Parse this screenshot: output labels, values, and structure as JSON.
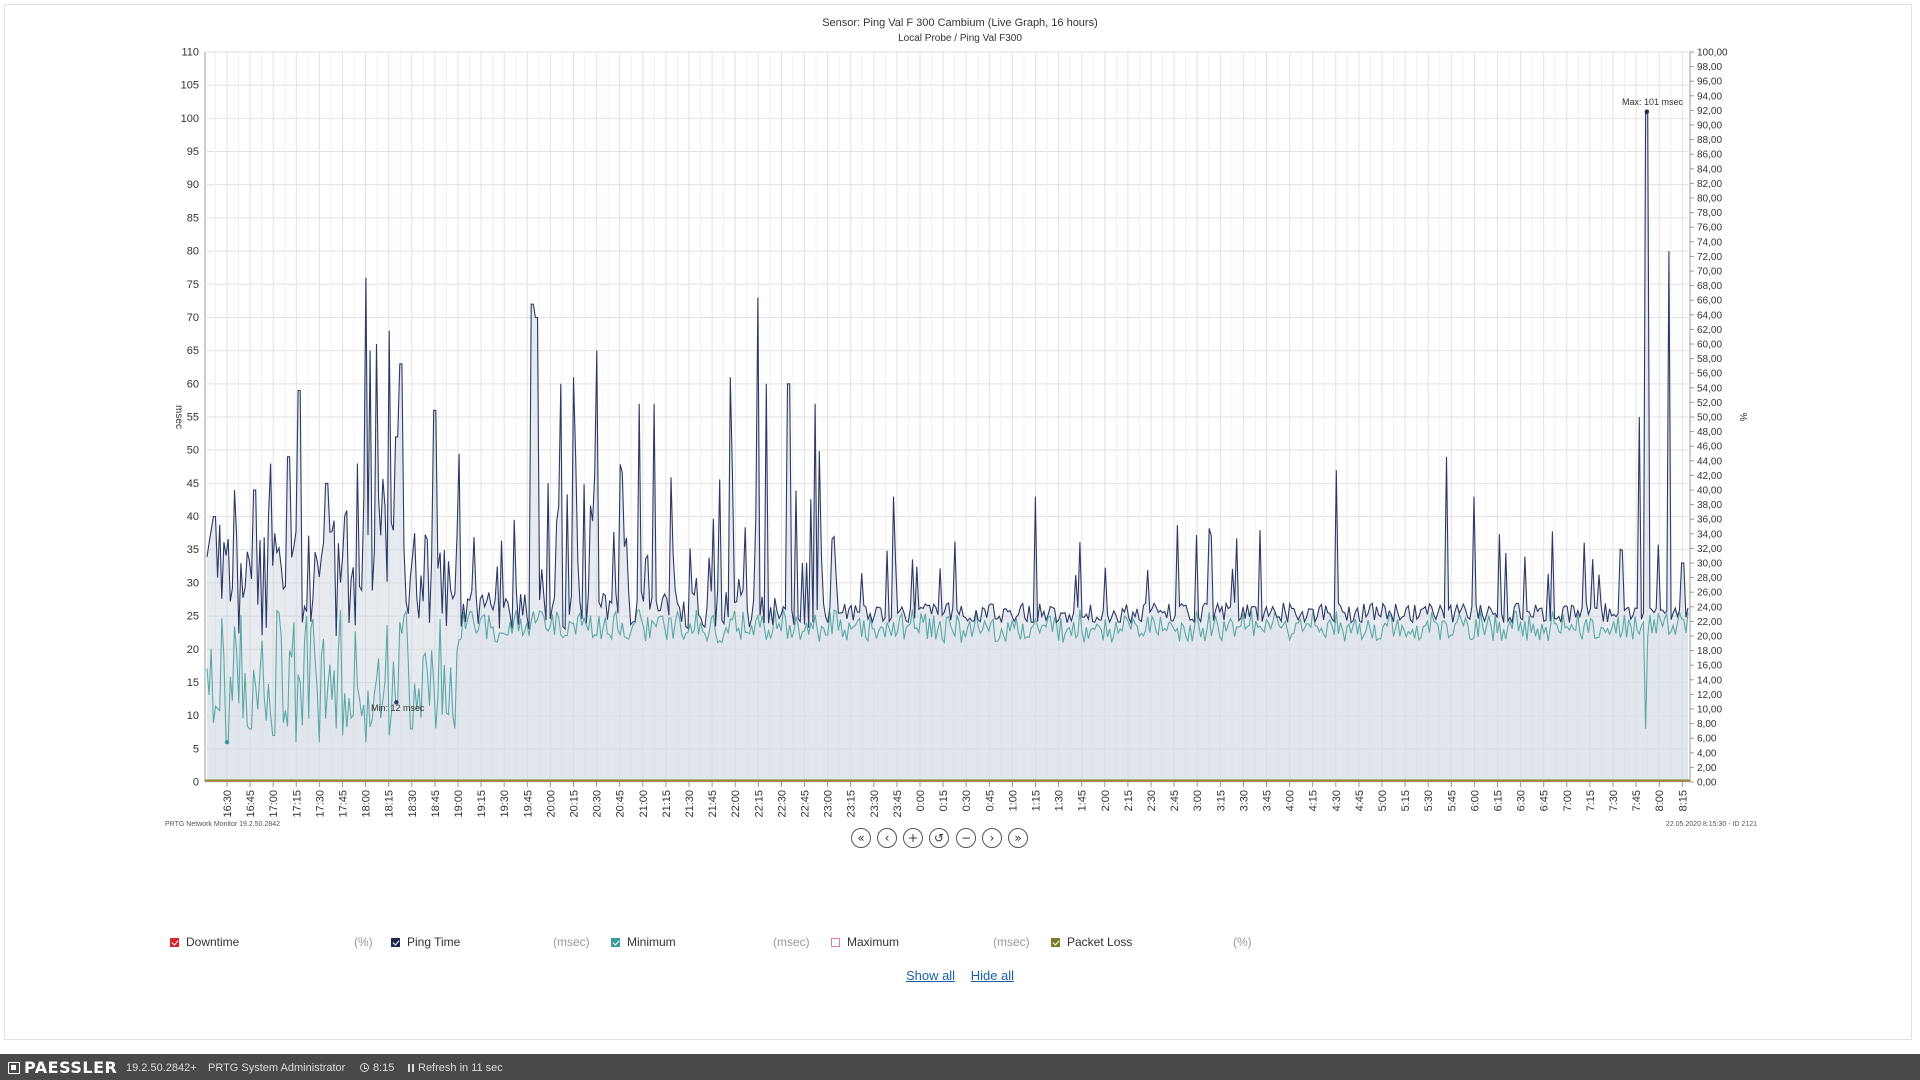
{
  "chart": {
    "title": "Sensor: Ping Val F 300 Cambium (Live Graph, 16 hours)",
    "subtitle": "Local Probe / Ping Val F300",
    "ylabel_left": "msec",
    "ylabel_right": "%",
    "left_ticks": [
      "0",
      "5",
      "10",
      "15",
      "20",
      "25",
      "30",
      "35",
      "40",
      "45",
      "50",
      "55",
      "60",
      "65",
      "70",
      "75",
      "80",
      "85",
      "90",
      "95",
      "100",
      "105",
      "110"
    ],
    "right_ticks": [
      "0,00",
      "2,00",
      "4,00",
      "6,00",
      "8,00",
      "10,00",
      "12,00",
      "14,00",
      "16,00",
      "18,00",
      "20,00",
      "22,00",
      "24,00",
      "26,00",
      "28,00",
      "30,00",
      "32,00",
      "34,00",
      "36,00",
      "38,00",
      "40,00",
      "42,00",
      "44,00",
      "46,00",
      "48,00",
      "50,00",
      "52,00",
      "54,00",
      "56,00",
      "58,00",
      "60,00",
      "62,00",
      "64,00",
      "66,00",
      "68,00",
      "70,00",
      "72,00",
      "74,00",
      "76,00",
      "78,00",
      "80,00",
      "82,00",
      "84,00",
      "86,00",
      "88,00",
      "90,00",
      "92,00",
      "94,00",
      "96,00",
      "98,00",
      "100,00"
    ],
    "x_ticks": [
      "16:30",
      "16:45",
      "17:00",
      "17:15",
      "17:30",
      "17:45",
      "18:00",
      "18:15",
      "18:30",
      "18:45",
      "19:00",
      "19:15",
      "19:30",
      "19:45",
      "20:00",
      "20:15",
      "20:30",
      "20:45",
      "21:00",
      "21:15",
      "21:30",
      "21:45",
      "22:00",
      "22:15",
      "22:30",
      "22:45",
      "23:00",
      "23:15",
      "23:30",
      "23:45",
      "0:00",
      "0:15",
      "0:30",
      "0:45",
      "1:00",
      "1:15",
      "1:30",
      "1:45",
      "2:00",
      "2:15",
      "2:30",
      "2:45",
      "3:00",
      "3:15",
      "3:30",
      "3:45",
      "4:00",
      "4:15",
      "4:30",
      "4:45",
      "5:00",
      "5:15",
      "5:30",
      "5:45",
      "6:00",
      "6:15",
      "6:30",
      "6:45",
      "7:00",
      "7:15",
      "7:30",
      "7:45",
      "8:00",
      "8:15"
    ],
    "max_label": "Max: 101 msec",
    "min_label": "Min: 12 msec",
    "footer_left": "PRTG Network Monitor 19.2.50.2842",
    "footer_right": "22.05.2020 8:15:30 - ID 2121"
  },
  "chart_data": {
    "type": "line",
    "title": "Sensor: Ping Val F 300 Cambium (Live Graph, 16 hours)",
    "subtitle": "Local Probe / Ping Val F300",
    "ylabel": "msec",
    "y2label": "%",
    "ylim": [
      0,
      110
    ],
    "y2lim": [
      0,
      100
    ],
    "x_ticks_labels": [
      "16:30",
      "16:45",
      "17:00",
      "17:15",
      "17:30",
      "17:45",
      "18:00",
      "18:15",
      "18:30",
      "18:45",
      "19:00",
      "19:15",
      "19:30",
      "19:45",
      "20:00",
      "20:15",
      "20:30",
      "20:45",
      "21:00",
      "21:15",
      "21:30",
      "21:45",
      "22:00",
      "22:15",
      "22:30",
      "22:45",
      "23:00",
      "23:15",
      "23:30",
      "23:45",
      "0:00",
      "0:15",
      "0:30",
      "0:45",
      "1:00",
      "1:15",
      "1:30",
      "1:45",
      "2:00",
      "2:15",
      "2:30",
      "2:45",
      "3:00",
      "3:15",
      "3:30",
      "3:45",
      "4:00",
      "4:15",
      "4:30",
      "4:45",
      "5:00",
      "5:15",
      "5:30",
      "5:45",
      "6:00",
      "6:15",
      "6:30",
      "6:45",
      "7:00",
      "7:15",
      "7:30",
      "7:45",
      "8:00",
      "8:15"
    ],
    "grid": true,
    "series": [
      {
        "name": "Ping Time",
        "color": "#2b3a66",
        "peaks": [
          [
            "16:22",
            40
          ],
          [
            "16:35",
            44
          ],
          [
            "16:48",
            44
          ],
          [
            "16:58",
            48
          ],
          [
            "17:10",
            49
          ],
          [
            "17:17",
            59
          ],
          [
            "17:35",
            45
          ],
          [
            "17:42",
            36
          ],
          [
            "17:55",
            48
          ],
          [
            "18:00",
            76
          ],
          [
            "18:03",
            65
          ],
          [
            "18:07",
            66
          ],
          [
            "18:15",
            68
          ],
          [
            "18:20",
            52
          ],
          [
            "18:23",
            63
          ],
          [
            "18:45",
            56
          ],
          [
            "19:48",
            72
          ],
          [
            "19:51",
            70
          ],
          [
            "20:07",
            60
          ],
          [
            "20:15",
            61
          ],
          [
            "20:30",
            65
          ],
          [
            "20:58",
            57
          ],
          [
            "21:07",
            57
          ],
          [
            "21:57",
            61
          ],
          [
            "22:15",
            73
          ],
          [
            "22:20",
            60
          ],
          [
            "22:35",
            60
          ],
          [
            "22:52",
            57
          ],
          [
            "23:43",
            43
          ],
          [
            "1:15",
            43
          ],
          [
            "4:30",
            47
          ],
          [
            "5:42",
            49
          ],
          [
            "6:00",
            43
          ],
          [
            "7:47",
            55
          ],
          [
            "7:52",
            101
          ],
          [
            "8:06",
            80
          ],
          [
            "8:15",
            33
          ]
        ],
        "baseline": 25
      },
      {
        "name": "Minimum",
        "color": "#5aa9a6",
        "lows": [
          [
            "16:30",
            6
          ],
          [
            "16:45",
            8
          ],
          [
            "17:00",
            7
          ],
          [
            "17:15",
            6
          ],
          [
            "17:30",
            6
          ],
          [
            "17:45",
            7
          ],
          [
            "18:00",
            6
          ],
          [
            "18:15",
            7
          ],
          [
            "18:20",
            12
          ],
          [
            "18:30",
            8
          ],
          [
            "7:51",
            8
          ]
        ],
        "baseline": 22
      },
      {
        "name": "Downtime",
        "unit": "%",
        "color": "#d9232e",
        "value": 0
      },
      {
        "name": "Packet Loss",
        "unit": "%",
        "color": "#8a8a2a",
        "value": 0
      }
    ],
    "annotations": [
      {
        "text": "Max: 101 msec",
        "x": "7:52",
        "y": 101
      },
      {
        "text": "Min: 12 msec",
        "x": "18:20",
        "y": 12
      }
    ]
  },
  "nav_buttons": [
    "«",
    "‹",
    "+",
    "↺",
    "−",
    "›",
    "»"
  ],
  "legend": [
    {
      "name": "Downtime",
      "unit": "(%)",
      "color": "#d9232e",
      "checked": true
    },
    {
      "name": "Ping Time",
      "unit": "(msec)",
      "color": "#1e2a52",
      "checked": true
    },
    {
      "name": "Minimum",
      "unit": "(msec)",
      "color": "#3a9a98",
      "checked": true
    },
    {
      "name": "Maximum",
      "unit": "(msec)",
      "color": "#e07aa0",
      "checked": false
    },
    {
      "name": "Packet Loss",
      "unit": "(%)",
      "color": "#7a7a28",
      "checked": true
    }
  ],
  "links": {
    "show_all": "Show all",
    "hide_all": "Hide all"
  },
  "footer": {
    "brand": "PAESSLER",
    "version": "19.2.50.2842+",
    "user": "PRTG System Administrator",
    "time": "8:15",
    "refresh": "Refresh in 11 sec"
  }
}
